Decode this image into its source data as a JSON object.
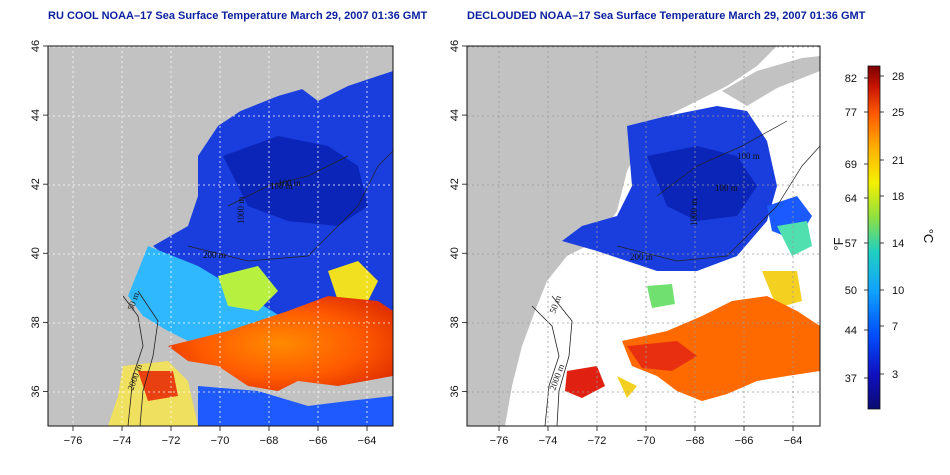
{
  "maps": [
    {
      "title": "RU COOL NOAA–17 Sea Surface Temperature March 29, 2007 01:36 GMT",
      "contour_labels": [
        "2000 m",
        "50 m",
        "100 m",
        "200 m",
        "1000 m",
        "100 m"
      ]
    },
    {
      "title": "DECLOUDED NOAA–17 Sea Surface Temperature March 29, 2007 01:36 GMT",
      "contour_labels": [
        "2000 m",
        "50 m",
        "100 m",
        "200 m",
        "1000 m",
        "100 m"
      ]
    }
  ],
  "axes": {
    "x_ticks": [
      "−76",
      "−74",
      "−72",
      "−70",
      "−68",
      "−66",
      "−64"
    ],
    "y_ticks": [
      "36",
      "38",
      "40",
      "42",
      "44",
      "46"
    ],
    "x_range": [
      -77,
      -63
    ],
    "y_range": [
      35,
      46
    ],
    "grid": "dotted"
  },
  "colorbar": {
    "fahrenheit_ticks": [
      "82",
      "77",
      "69",
      "64",
      "57",
      "50",
      "44",
      "37"
    ],
    "celsius_ticks": [
      "28",
      "25",
      "21",
      "18",
      "14",
      "10",
      "7",
      "3"
    ],
    "fahrenheit_label": "°F",
    "celsius_label": "°C",
    "colors": [
      "#7a0000",
      "#c81400",
      "#ff5a00",
      "#ffb000",
      "#f4f000",
      "#90e040",
      "#20d0c0",
      "#10a0ff",
      "#0050ff",
      "#1010c0",
      "#0a0a70"
    ]
  }
}
